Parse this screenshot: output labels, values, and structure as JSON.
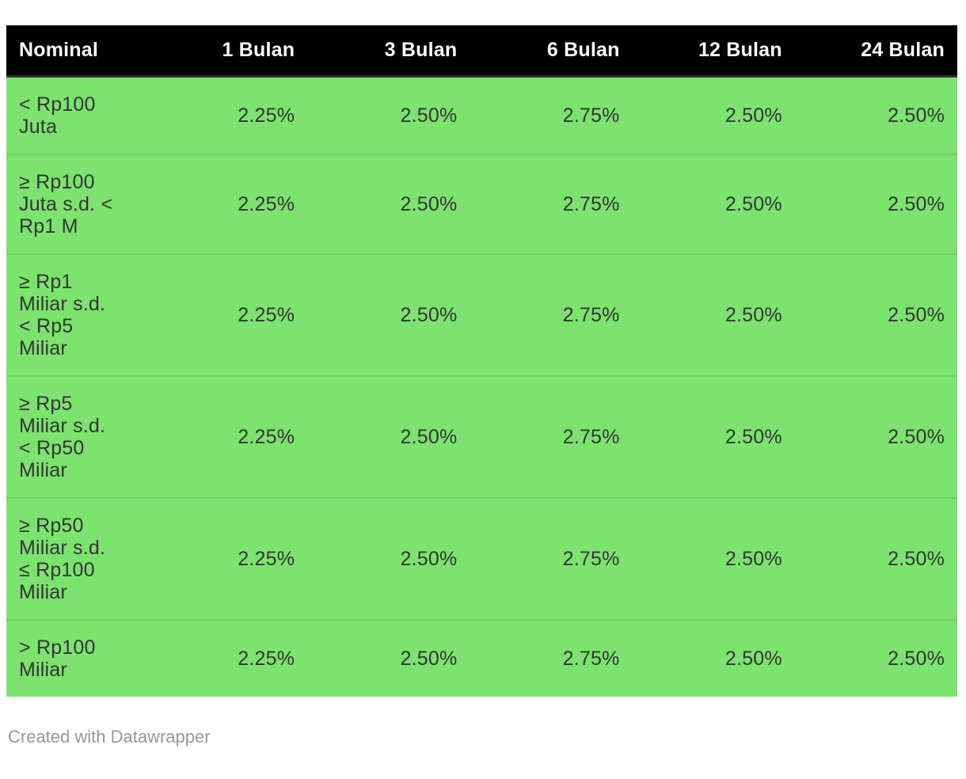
{
  "chart_data": {
    "type": "table",
    "title": "",
    "columns": [
      "Nominal",
      "1 Bulan",
      "3 Bulan",
      "6 Bulan",
      "12 Bulan",
      "24 Bulan"
    ],
    "rows": [
      {
        "label": "< Rp100\nJuta",
        "values": [
          "2.25%",
          "2.50%",
          "2.75%",
          "2.50%",
          "2.50%"
        ]
      },
      {
        "label": "≥ Rp100\nJuta s.d. <\nRp1 M",
        "values": [
          "2.25%",
          "2.50%",
          "2.75%",
          "2.50%",
          "2.50%"
        ]
      },
      {
        "label": "≥ Rp1\nMiliar s.d.\n< Rp5\nMiliar",
        "values": [
          "2.25%",
          "2.50%",
          "2.75%",
          "2.50%",
          "2.50%"
        ]
      },
      {
        "label": "≥ Rp5\nMiliar s.d.\n< Rp50\nMiliar",
        "values": [
          "2.25%",
          "2.50%",
          "2.75%",
          "2.50%",
          "2.50%"
        ]
      },
      {
        "label": "≥ Rp50\nMiliar s.d.\n≤ Rp100\nMiliar",
        "values": [
          "2.25%",
          "2.50%",
          "2.75%",
          "2.50%",
          "2.50%"
        ]
      },
      {
        "label": "> Rp100\nMiliar",
        "values": [
          "2.25%",
          "2.50%",
          "2.75%",
          "2.50%",
          "2.50%"
        ]
      }
    ],
    "layout": {
      "header_position": "top",
      "value_align": "right",
      "grid": "horizontal-separators-only"
    }
  },
  "footer": {
    "credit": "Created with Datawrapper"
  },
  "colors": {
    "header_bg": "#000000",
    "header_text": "#ffffff",
    "body_bg": "#7be36e",
    "body_text": "#333333",
    "separator": "rgba(0,0,0,0.08)",
    "credit_text": "#989898"
  }
}
